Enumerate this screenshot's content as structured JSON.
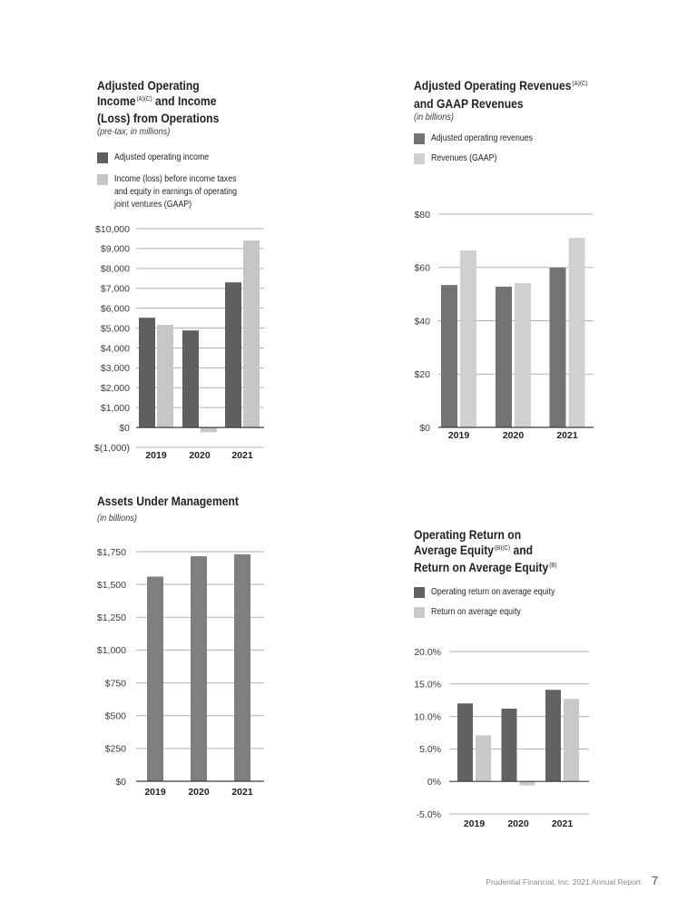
{
  "page": {
    "footer_text": "Prudential Financial, Inc. 2021 Annual Report",
    "page_number": "7"
  },
  "chart_data": [
    {
      "type": "bar",
      "title_lines": [
        [
          {
            "t": "Adjusted Operating"
          }
        ],
        [
          {
            "t": "Income"
          },
          {
            "sup": "(A)(C)"
          },
          {
            "t": " and Income"
          }
        ],
        [
          {
            "t": "(Loss) from Operations"
          }
        ]
      ],
      "subtitle": "(pre-tax, in millions)",
      "categories": [
        "2019",
        "2020",
        "2021"
      ],
      "series": [
        {
          "label_lines": [
            "Adjusted operating income"
          ],
          "color": "#5f5f5f",
          "values": [
            5520,
            4880,
            7300
          ]
        },
        {
          "label_lines": [
            "Income (loss) before income taxes",
            "and equity in earnings of operating",
            "joint ventures (GAAP)"
          ],
          "color": "#c6c6c6",
          "values": [
            5160,
            -240,
            9400
          ]
        }
      ],
      "ylim": [
        -1000,
        10000
      ],
      "yticks": [
        -1000,
        0,
        1000,
        2000,
        3000,
        4000,
        5000,
        6000,
        7000,
        8000,
        9000,
        10000
      ],
      "ytick_labels": [
        "$(1,000)",
        "$0",
        "$1,000",
        "$2,000",
        "$3,000",
        "$4,000",
        "$5,000",
        "$6,000",
        "$7,000",
        "$8,000",
        "$9,000",
        "$10,000"
      ],
      "legend": "top-left"
    },
    {
      "type": "bar",
      "title_lines": [
        [
          {
            "t": "Adjusted Operating Revenues"
          },
          {
            "sup": "(A)(C)"
          }
        ],
        [
          {
            "t": "and GAAP Revenues"
          }
        ]
      ],
      "subtitle": "(in billions)",
      "categories": [
        "2019",
        "2020",
        "2021"
      ],
      "series": [
        {
          "label_lines": [
            "Adjusted operating revenues"
          ],
          "color": "#737373",
          "values": [
            53.4,
            52.8,
            59.9
          ]
        },
        {
          "label_lines": [
            "Revenues (GAAP)"
          ],
          "color": "#d0d0d0",
          "values": [
            66.4,
            54.1,
            71.1
          ]
        }
      ],
      "ylim": [
        0,
        80
      ],
      "yticks": [
        0,
        20,
        40,
        60,
        80
      ],
      "ytick_labels": [
        "$0",
        "$20",
        "$40",
        "$60",
        "$80"
      ],
      "legend": "top-left"
    },
    {
      "type": "bar",
      "title_lines": [
        [
          {
            "t": "Assets Under Management"
          }
        ]
      ],
      "subtitle": "(in billions)",
      "categories": [
        "2019",
        "2020",
        "2021"
      ],
      "series": [
        {
          "color": "#7f7f7f",
          "values": [
            1560,
            1715,
            1730
          ]
        }
      ],
      "ylim": [
        0,
        1750
      ],
      "yticks": [
        0,
        250,
        500,
        750,
        1000,
        1250,
        1500,
        1750
      ],
      "ytick_labels": [
        "$0",
        "$250",
        "$500",
        "$750",
        "$1,000",
        "$1,250",
        "$1,500",
        "$1,750"
      ]
    },
    {
      "type": "bar",
      "title_lines": [
        [
          {
            "t": "Operating Return on"
          }
        ],
        [
          {
            "t": "Average Equity"
          },
          {
            "sup": "(B)(C)"
          },
          {
            "t": " and"
          }
        ],
        [
          {
            "t": "Return on Average Equity"
          },
          {
            "sup": "(B)"
          }
        ]
      ],
      "categories": [
        "2019",
        "2020",
        "2021"
      ],
      "series": [
        {
          "label_lines": [
            "Operating return on average equity"
          ],
          "color": "#626262",
          "values": [
            12.0,
            11.2,
            14.1
          ]
        },
        {
          "label_lines": [
            "Return on average equity"
          ],
          "color": "#c9c9c9",
          "values": [
            7.1,
            -0.6,
            12.7
          ]
        }
      ],
      "ylim": [
        -5,
        20
      ],
      "yticks": [
        -5,
        0,
        5,
        10,
        15,
        20
      ],
      "ytick_labels": [
        "-5.0%",
        "0%",
        "5.0%",
        "10.0%",
        "15.0%",
        "20.0%"
      ],
      "legend": "top-left"
    }
  ]
}
